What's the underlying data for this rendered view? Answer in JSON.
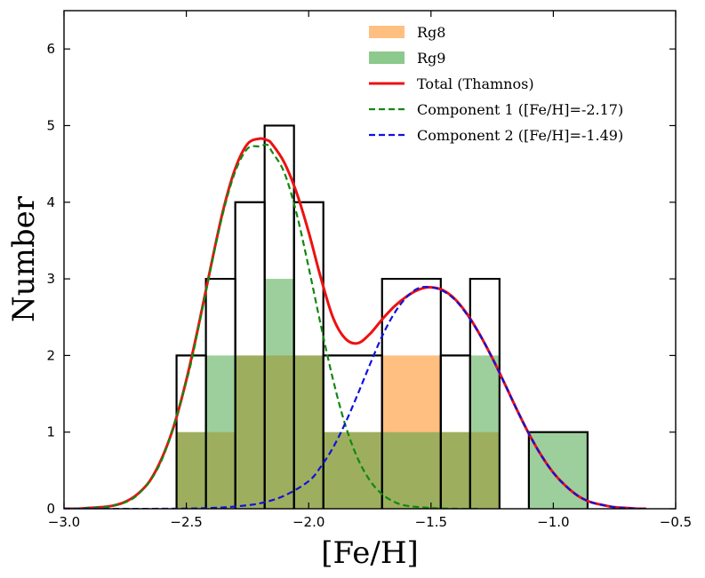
{
  "chart_data": {
    "type": "histogram",
    "xlabel": "[Fe/H]",
    "ylabel": "Number",
    "xlim": [
      -3.0,
      -0.5
    ],
    "ylim": [
      0,
      6.5
    ],
    "xticks": [
      -3.0,
      -2.5,
      -2.0,
      -1.5,
      -1.0,
      -0.5
    ],
    "xtick_labels": [
      "−3.0",
      "−2.5",
      "−2.0",
      "−1.5",
      "−1.0",
      "−0.5"
    ],
    "yticks": [
      0,
      1,
      2,
      3,
      4,
      5,
      6
    ],
    "ytick_labels": [
      "0",
      "1",
      "2",
      "3",
      "4",
      "5",
      "6"
    ],
    "grid": false,
    "legend_position": "top-right",
    "series": [
      {
        "name": "Rg8",
        "kind": "hist",
        "color": "#ffbf80",
        "bins": [
          {
            "x0": -2.54,
            "x1": -2.3,
            "y": 1
          },
          {
            "x0": -2.3,
            "x1": -1.94,
            "y": 2
          },
          {
            "x0": -1.94,
            "x1": -1.7,
            "y": 1
          },
          {
            "x0": -1.7,
            "x1": -1.46,
            "y": 2
          },
          {
            "x0": -1.46,
            "x1": -1.22,
            "y": 1
          }
        ]
      },
      {
        "name": "Rg9",
        "kind": "hist",
        "color": "#8cc98c",
        "bins": [
          {
            "x0": -2.54,
            "x1": -2.42,
            "y": 1
          },
          {
            "x0": -2.42,
            "x1": -2.3,
            "y": 2
          },
          {
            "x0": -2.3,
            "x1": -2.18,
            "y": 2
          },
          {
            "x0": -2.18,
            "x1": -2.06,
            "y": 3
          },
          {
            "x0": -2.06,
            "x1": -1.94,
            "y": 2
          },
          {
            "x0": -1.94,
            "x1": -1.7,
            "y": 1
          },
          {
            "x0": -1.7,
            "x1": -1.46,
            "y": 1
          },
          {
            "x0": -1.46,
            "x1": -1.34,
            "y": 1
          },
          {
            "x0": -1.34,
            "x1": -1.22,
            "y": 2
          },
          {
            "x0": -1.1,
            "x1": -0.86,
            "y": 1
          }
        ]
      },
      {
        "name": "",
        "kind": "step-outline",
        "color": "#000000",
        "bins": [
          {
            "x0": -2.54,
            "x1": -2.42,
            "y": 2
          },
          {
            "x0": -2.42,
            "x1": -2.3,
            "y": 3
          },
          {
            "x0": -2.3,
            "x1": -2.18,
            "y": 4
          },
          {
            "x0": -2.18,
            "x1": -2.06,
            "y": 5
          },
          {
            "x0": -2.06,
            "x1": -1.94,
            "y": 4
          },
          {
            "x0": -1.94,
            "x1": -1.7,
            "y": 2
          },
          {
            "x0": -1.7,
            "x1": -1.46,
            "y": 3
          },
          {
            "x0": -1.46,
            "x1": -1.34,
            "y": 2
          },
          {
            "x0": -1.34,
            "x1": -1.22,
            "y": 3
          },
          {
            "x0": -1.1,
            "x1": -0.86,
            "y": 1
          }
        ]
      },
      {
        "name": "Total (Thamnos)",
        "kind": "line",
        "color": "#ee1111",
        "style": "solid",
        "x": [
          -3.0,
          -2.95,
          -2.9,
          -2.85,
          -2.8,
          -2.75,
          -2.7,
          -2.65,
          -2.6,
          -2.55,
          -2.5,
          -2.45,
          -2.4,
          -2.35,
          -2.3,
          -2.25,
          -2.2,
          -2.17,
          -2.15,
          -2.1,
          -2.05,
          -2.0,
          -1.95,
          -1.9,
          -1.85,
          -1.8,
          -1.75,
          -1.7,
          -1.65,
          -1.6,
          -1.55,
          -1.5,
          -1.45,
          -1.4,
          -1.35,
          -1.3,
          -1.25,
          -1.2,
          -1.15,
          -1.1,
          -1.05,
          -1.0,
          -0.95,
          -0.9,
          -0.85,
          -0.8,
          -0.75,
          -0.7,
          -0.65,
          -0.62
        ],
        "y": [
          0.0,
          0.0,
          0.01,
          0.02,
          0.04,
          0.09,
          0.19,
          0.36,
          0.66,
          1.09,
          1.68,
          2.39,
          3.16,
          3.89,
          4.44,
          4.76,
          4.83,
          4.81,
          4.76,
          4.52,
          4.13,
          3.61,
          3.01,
          2.49,
          2.22,
          2.16,
          2.28,
          2.47,
          2.64,
          2.77,
          2.86,
          2.89,
          2.85,
          2.73,
          2.53,
          2.27,
          1.97,
          1.64,
          1.3,
          0.98,
          0.7,
          0.47,
          0.3,
          0.17,
          0.09,
          0.05,
          0.02,
          0.01,
          0.0,
          0.0
        ]
      },
      {
        "name": "Component 1 ([Fe/H]=-2.17)",
        "kind": "line",
        "color": "#118811",
        "style": "dashed",
        "x": [
          -3.0,
          -2.9,
          -2.8,
          -2.7,
          -2.6,
          -2.5,
          -2.45,
          -2.4,
          -2.35,
          -2.3,
          -2.25,
          -2.2,
          -2.17,
          -2.15,
          -2.1,
          -2.05,
          -2.0,
          -1.95,
          -1.9,
          -1.85,
          -1.8,
          -1.75,
          -1.7,
          -1.65,
          -1.6,
          -1.5,
          -1.4,
          -1.3
        ],
        "y": [
          0.0,
          0.01,
          0.04,
          0.18,
          0.64,
          1.66,
          2.37,
          3.14,
          3.86,
          4.4,
          4.7,
          4.73,
          4.75,
          4.66,
          4.39,
          3.86,
          3.15,
          2.39,
          1.68,
          1.09,
          0.66,
          0.37,
          0.19,
          0.09,
          0.04,
          0.01,
          0.0,
          0.0
        ]
      },
      {
        "name": "Component 2 ([Fe/H]=-1.49)",
        "kind": "line",
        "color": "#1111dd",
        "style": "dashed",
        "x": [
          -3.0,
          -2.6,
          -2.4,
          -2.3,
          -2.2,
          -2.1,
          -2.0,
          -1.95,
          -1.9,
          -1.85,
          -1.8,
          -1.75,
          -1.7,
          -1.65,
          -1.6,
          -1.55,
          -1.5,
          -1.45,
          -1.4,
          -1.35,
          -1.3,
          -1.25,
          -1.2,
          -1.15,
          -1.1,
          -1.05,
          -1.0,
          -0.95,
          -0.9,
          -0.85,
          -0.8,
          -0.75,
          -0.7,
          -0.65,
          -0.62
        ],
        "y": [
          0.0,
          0.0,
          0.01,
          0.03,
          0.07,
          0.17,
          0.36,
          0.55,
          0.8,
          1.12,
          1.49,
          1.88,
          2.25,
          2.55,
          2.76,
          2.88,
          2.89,
          2.84,
          2.72,
          2.52,
          2.27,
          1.97,
          1.64,
          1.3,
          0.98,
          0.7,
          0.47,
          0.3,
          0.17,
          0.09,
          0.05,
          0.02,
          0.01,
          0.0,
          0.0
        ]
      }
    ]
  }
}
